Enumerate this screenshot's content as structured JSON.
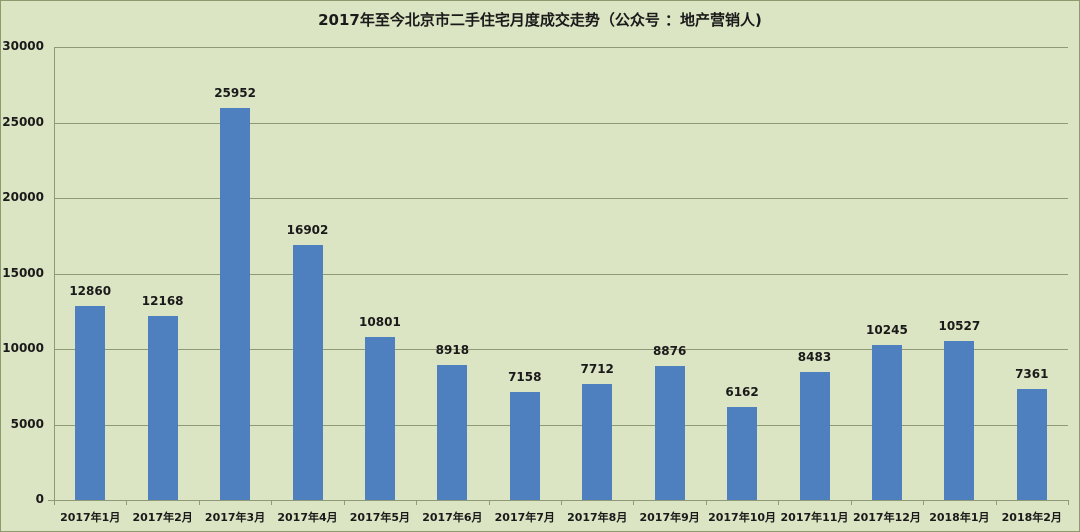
{
  "chart_data": {
    "type": "bar",
    "title": "2017年至今北京市二手住宅月度成交走势（公众号 ：地产营销人)",
    "xlabel": "",
    "ylabel": "",
    "ylim": [
      0,
      30000
    ],
    "yticks": [
      "0",
      "5000",
      "10000",
      "15000",
      "20000",
      "25000",
      "30000"
    ],
    "grid": true,
    "legend": "none",
    "bar_color": "#4e7fbf",
    "background_color": "#dbe5c3",
    "categories": [
      "2017年1月",
      "2017年2月",
      "2017年3月",
      "2017年4月",
      "2017年5月",
      "2017年6月",
      "2017年7月",
      "2017年8月",
      "2017年9月",
      "2017年10月",
      "2017年11月",
      "2017年12月",
      "2018年1月",
      "2018年2月"
    ],
    "values": [
      12860,
      12168,
      25952,
      16902,
      10801,
      8918,
      7158,
      7712,
      8876,
      6162,
      8483,
      10245,
      10527,
      7361
    ]
  }
}
